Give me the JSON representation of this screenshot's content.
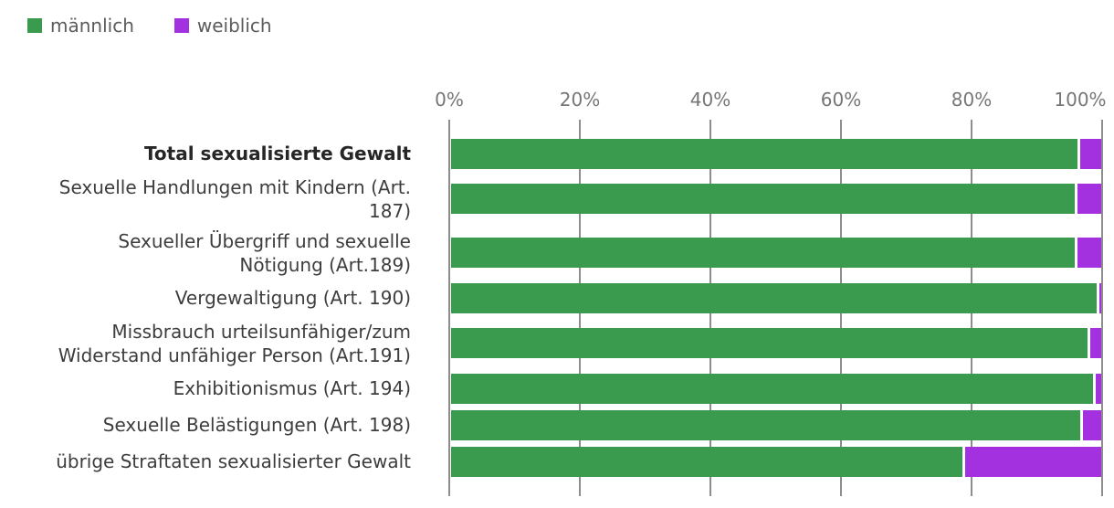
{
  "chart_data": {
    "type": "bar",
    "subtype": "stacked-horizontal-100pct",
    "orientation": "horizontal",
    "background": "#ffffff",
    "grid_color": "#8d8d8d",
    "legend_position": "top-left",
    "legend": [
      {
        "label": "männlich",
        "color": "#3a9a4d"
      },
      {
        "label": "weiblich",
        "color": "#a331e0"
      }
    ],
    "x_axis": {
      "ticks": [
        "0%",
        "20%",
        "40%",
        "60%",
        "80%",
        "100%"
      ],
      "min": 0,
      "max": 100,
      "unit": "%",
      "gridlines": true
    },
    "categories": [
      [
        "Total sexualisierte Gewalt"
      ],
      [
        "Sexuelle Handlungen mit Kindern (Art.",
        "187)"
      ],
      [
        "Sexueller Übergriff und sexuelle",
        "Nötigung (Art.189)"
      ],
      [
        "Vergewaltigung (Art. 190)"
      ],
      [
        "Missbrauch urteilsunfähiger/zum",
        "Widerstand unfähiger Person (Art.191)"
      ],
      [
        "Exhibitionismus (Art. 194)"
      ],
      [
        "Sexuelle Belästigungen (Art. 198)"
      ],
      [
        "übrige Straftaten sexualisierter Gewalt"
      ]
    ],
    "emphasized_row_index": 0,
    "series": [
      {
        "name": "männlich",
        "values": [
          96.4,
          95.9,
          95.9,
          99.3,
          97.9,
          98.8,
          96.8,
          78.6
        ]
      },
      {
        "name": "weiblich",
        "values": [
          3.6,
          4.1,
          4.1,
          0.7,
          2.1,
          1.2,
          3.2,
          21.4
        ]
      }
    ]
  }
}
